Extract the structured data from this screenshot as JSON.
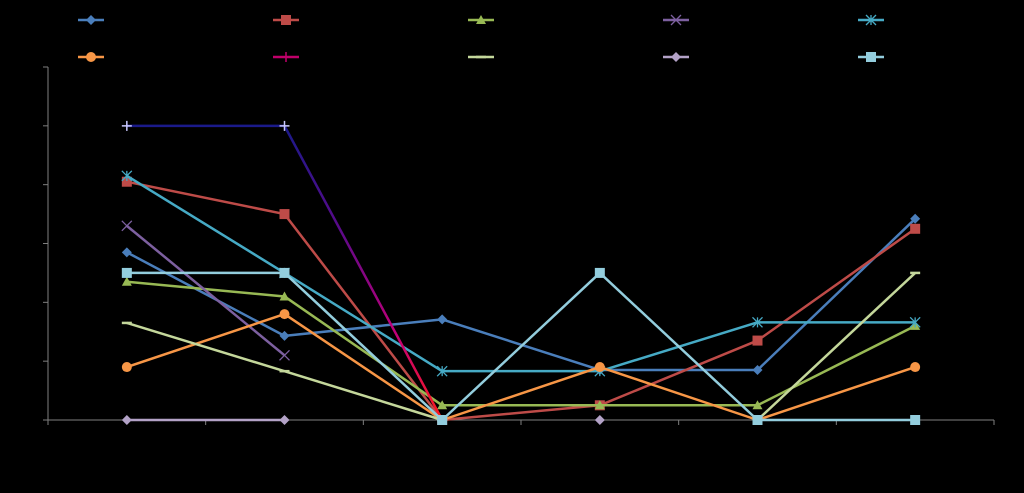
{
  "chart_data": {
    "type": "line",
    "title": "",
    "xlabel": "",
    "ylabel": "",
    "grid": false,
    "legend_position": "top",
    "background": "#000000",
    "axis_color": "#7f7f7f",
    "x_count": 6,
    "ylim": [
      0,
      6
    ],
    "series": [
      {
        "color": "#4a7ebb",
        "marker": "diamond",
        "values": [
          2.85,
          1.43,
          1.71,
          0.85,
          0.85,
          3.42
        ]
      },
      {
        "color": "#be4b48",
        "marker": "square",
        "values": [
          4.05,
          3.5,
          0.0,
          0.25,
          1.35,
          3.25
        ]
      },
      {
        "color": "#98b954",
        "marker": "triangle",
        "values": [
          2.35,
          2.1,
          0.25,
          0.25,
          0.25,
          1.6
        ]
      },
      {
        "color": "#7d60a0",
        "marker": "x",
        "values": [
          3.3,
          1.1,
          null,
          null,
          null,
          null
        ]
      },
      {
        "color": "#46aac5",
        "marker": "star",
        "values": [
          4.15,
          2.5,
          0.83,
          0.83,
          1.66,
          1.66
        ]
      },
      {
        "color": "#f79646",
        "marker": "circle",
        "values": [
          0.9,
          1.8,
          0.0,
          0.9,
          0.0,
          0.9
        ]
      },
      {
        "color": "#1a1a8a",
        "color_end": "#ff1a1a",
        "marker": "plus",
        "values": [
          5.0,
          5.0,
          0.0,
          null,
          null,
          null
        ]
      },
      {
        "color": "#c4d79b",
        "marker": "dash",
        "values": [
          1.65,
          0.83,
          0.0,
          null,
          0.0,
          2.5
        ]
      },
      {
        "color": "#b3a2c7",
        "marker": "diamond",
        "values": [
          0.0,
          0.0,
          null,
          0.0,
          null,
          null
        ]
      },
      {
        "color": "#93cddd",
        "marker": "square",
        "values": [
          2.5,
          2.5,
          0.0,
          2.5,
          0.0,
          0.0
        ]
      }
    ],
    "legend_entries": [
      {
        "color": "#4a7ebb",
        "marker": "diamond"
      },
      {
        "color": "#be4b48",
        "marker": "square"
      },
      {
        "color": "#98b954",
        "marker": "triangle"
      },
      {
        "color": "#7d60a0",
        "marker": "x"
      },
      {
        "color": "#46aac5",
        "marker": "star"
      },
      {
        "color": "#f79646",
        "marker": "circle"
      },
      {
        "color": "#c0006a",
        "marker": "plus"
      },
      {
        "color": "#c4d79b",
        "marker": "dash"
      },
      {
        "color": "#b3a2c7",
        "marker": "diamond"
      },
      {
        "color": "#93cddd",
        "marker": "square"
      }
    ]
  }
}
